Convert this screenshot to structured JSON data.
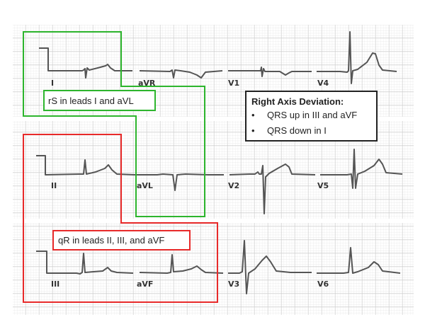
{
  "leads": {
    "row1": [
      "I",
      "aVR",
      "V1",
      "V4"
    ],
    "row2": [
      "II",
      "aVL",
      "V2",
      "V5"
    ],
    "row3": [
      "III",
      "aVF",
      "V3",
      "V6"
    ]
  },
  "annotations": {
    "green_label": "rS in leads I and aVL",
    "red_label": "qR in leads II, III, and aVF",
    "summary_title": "Right Axis Deviation:",
    "summary_items": [
      "QRS up in III and aVF",
      "QRS down in I"
    ],
    "bullet": "•"
  },
  "colors": {
    "green": "#2db52d",
    "red": "#e82a2a",
    "trace": "#555555",
    "grid_minor": "#e2e2e2",
    "grid_major": "#c4c4c4"
  }
}
